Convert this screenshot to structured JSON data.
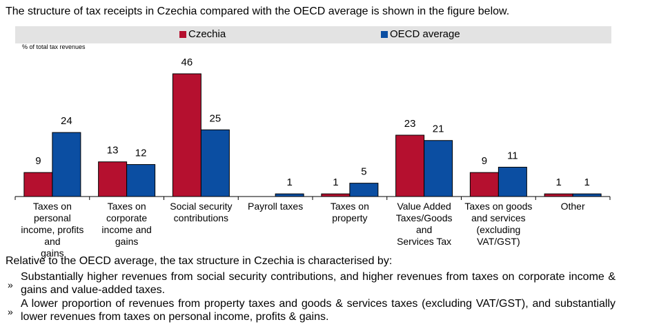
{
  "intro_text": "The structure of tax receipts in Czechia compared with the OECD average is shown in the figure below.",
  "chart_data": {
    "type": "bar",
    "ylabel": "% of total tax revenues",
    "ylim": [
      0,
      50
    ],
    "categories": [
      "Taxes on personal income, profits and gains",
      "Taxes on corporate income and gains",
      "Social security contributions",
      "Payroll taxes",
      "Taxes on property",
      "Value Added Taxes/Goods and Services Tax",
      "Taxes on goods and services (excluding VAT/GST)",
      "Other"
    ],
    "category_lines": [
      [
        "Taxes on personal",
        "income, profits and",
        "gains"
      ],
      [
        "Taxes on corporate",
        "income and gains"
      ],
      [
        "Social security",
        "contributions"
      ],
      [
        "Payroll taxes"
      ],
      [
        "Taxes on property"
      ],
      [
        "Value Added",
        "Taxes/Goods and",
        "Services Tax"
      ],
      [
        "Taxes on goods",
        "and services",
        "(excluding",
        "VAT/GST)"
      ],
      [
        "Other"
      ]
    ],
    "series": [
      {
        "name": "Czechia",
        "color": "#b5102f",
        "values": [
          9,
          13,
          46,
          0,
          1,
          23,
          9,
          1
        ],
        "labels": [
          "9",
          "13",
          "46",
          "",
          "1",
          "23",
          "9",
          "1"
        ]
      },
      {
        "name": "OECD average",
        "color": "#0b4ea2",
        "values": [
          24,
          12,
          25,
          1,
          5,
          21,
          11,
          1
        ],
        "labels": [
          "24",
          "12",
          "25",
          "1",
          "5",
          "21",
          "11",
          "1"
        ]
      }
    ],
    "legend_position": "top"
  },
  "summary": {
    "intro": "Relative to the OECD average, the tax structure in Czechia is characterised by:",
    "bullet_mark": "»",
    "bullets": [
      "Substantially higher revenues from social security contributions, and higher revenues from taxes on corporate income & gains and value-added taxes.",
      "A lower proportion of revenues from property taxes and goods & services taxes (excluding VAT/GST), and substantially lower revenues from taxes on personal income, profits & gains."
    ]
  }
}
